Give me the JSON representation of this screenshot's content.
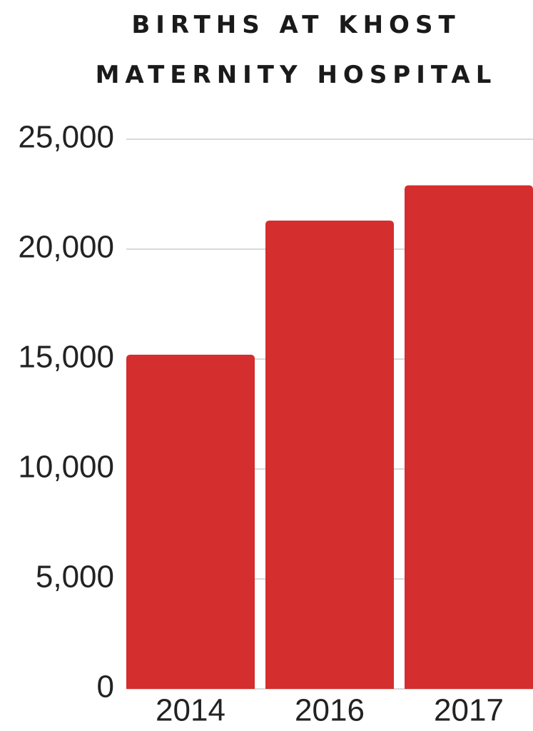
{
  "chart_data": {
    "type": "bar",
    "title": "BIRTHS AT KHOST MATERNITY HOSPITAL",
    "categories": [
      "2014",
      "2016",
      "2017"
    ],
    "values": [
      15200,
      21300,
      22900
    ],
    "color": "#d42e2e",
    "ylim": [
      0,
      25000
    ],
    "yticks": [
      0,
      {
        "value": 5000,
        "label": "5,000"
      },
      {
        "value": 10000,
        "label": "10,000"
      },
      {
        "value": 15000,
        "label": "15,000"
      },
      {
        "value": 20000,
        "label": "20,000"
      },
      {
        "value": 25000,
        "label": "25,000"
      }
    ],
    "grid": true
  }
}
